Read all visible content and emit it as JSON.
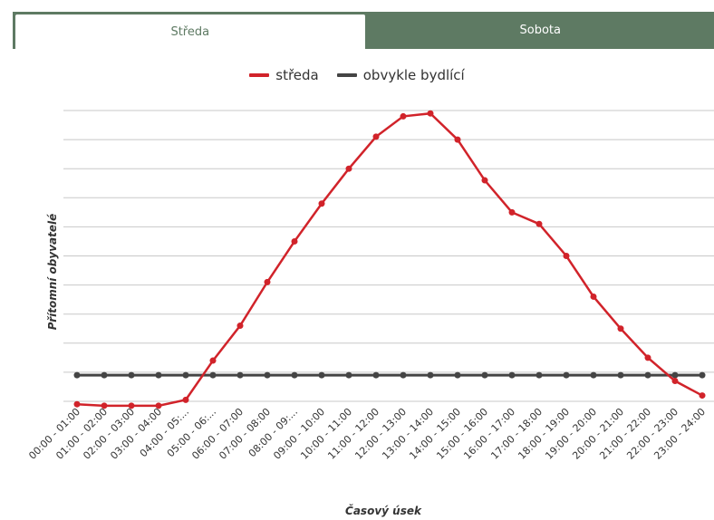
{
  "tabs": [
    {
      "label": "Středa",
      "active": true
    },
    {
      "label": "Sobota",
      "active": false
    }
  ],
  "colors": {
    "accent": "#5e7a63",
    "series_streda": "#d1232a",
    "series_bydlici": "#444444"
  },
  "chart_data": {
    "type": "line",
    "title": "",
    "xlabel": "Časový úsek",
    "ylabel": "Přítomní obyvatelé",
    "legend_position": "top-center",
    "grid": true,
    "categories": [
      "00:00 - 01:00",
      "01:00 - 02:00",
      "02:00 - 03:00",
      "03:00 - 04:00",
      "04:00 - 05:...",
      "05:00 - 06:...",
      "06:00 - 07:00",
      "07:00 - 08:00",
      "08:00 - 09:...",
      "09:00 - 10:00",
      "10:00 - 11:00",
      "11:00 - 12:00",
      "12:00 - 13:00",
      "13:00 - 14:00",
      "14:00 - 15:00",
      "15:00 - 16:00",
      "16:00 - 17:00",
      "17:00 - 18:00",
      "18:00 - 19:00",
      "19:00 - 20:00",
      "20:00 - 21:00",
      "21:00 - 22:00",
      "22:00 - 23:00",
      "23:00 - 24:00"
    ],
    "ylim": [
      0,
      10
    ],
    "series": [
      {
        "name": "středa",
        "color": "#d1232a",
        "values": [
          -0.1,
          -0.15,
          -0.15,
          -0.15,
          0.05,
          1.4,
          2.6,
          4.1,
          5.5,
          6.8,
          8.0,
          9.1,
          9.8,
          9.9,
          9.0,
          7.6,
          6.5,
          6.1,
          5.0,
          3.6,
          2.5,
          1.5,
          0.7,
          0.2
        ]
      },
      {
        "name": "obvykle bydlící",
        "color": "#444444",
        "values": [
          0.9,
          0.9,
          0.9,
          0.9,
          0.9,
          0.9,
          0.9,
          0.9,
          0.9,
          0.9,
          0.9,
          0.9,
          0.9,
          0.9,
          0.9,
          0.9,
          0.9,
          0.9,
          0.9,
          0.9,
          0.9,
          0.9,
          0.9,
          0.9
        ]
      }
    ]
  }
}
